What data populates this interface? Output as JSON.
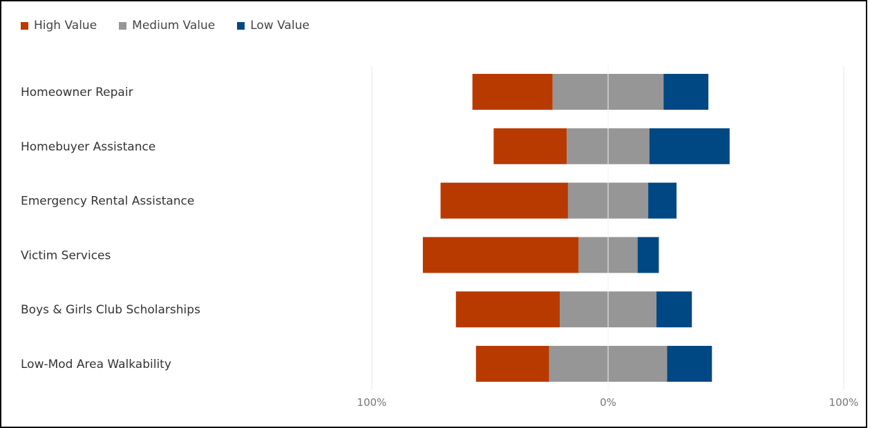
{
  "legend": [
    {
      "label": "High Value",
      "color": "#b83a00"
    },
    {
      "label": "Medium Value",
      "color": "#969696"
    },
    {
      "label": "Low Value",
      "color": "#004883"
    }
  ],
  "chart_data": {
    "type": "bar",
    "orientation": "horizontal-diverging",
    "stacked": true,
    "categories": [
      "Homeowner Repair",
      "Homebuyer Assistance",
      "Emergency Rental Assistance",
      "Victim Services",
      "Boys & Girls Club Scholarships",
      "Low-Mod Area Walkability"
    ],
    "series": [
      {
        "name": "High Value",
        "color": "#b83a00",
        "values": [
          34,
          31,
          54,
          66,
          44,
          31
        ]
      },
      {
        "name": "Medium Value",
        "color": "#969696",
        "values": [
          47,
          35,
          34,
          25,
          41,
          50
        ]
      },
      {
        "name": "Low Value",
        "color": "#004883",
        "values": [
          19,
          34,
          12,
          9,
          15,
          19
        ]
      }
    ],
    "tick_labels": [
      "100%",
      "0%",
      "100%"
    ],
    "xlim": [
      -100,
      100
    ],
    "legend_position": "top-left",
    "grid": true
  }
}
